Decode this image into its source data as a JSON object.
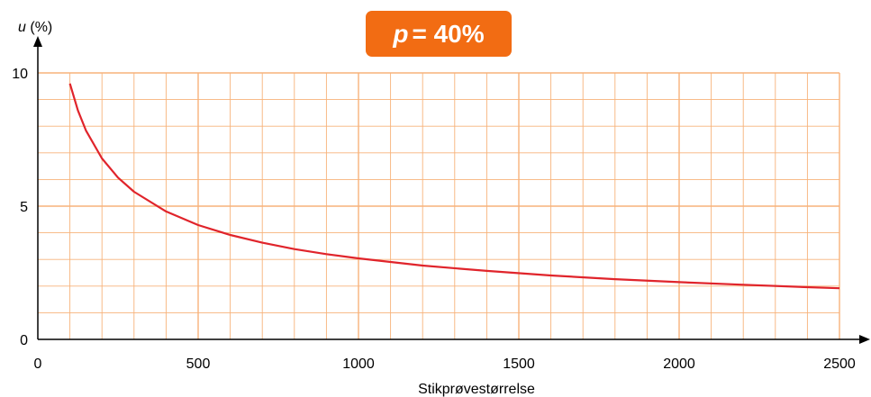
{
  "badge": {
    "variable": "p",
    "text": "= 40%"
  },
  "colors": {
    "grid": "#f7b27a",
    "curve": "#e0242b",
    "badge": "#f26c13",
    "axis": "#000000"
  },
  "chart_data": {
    "type": "line",
    "xlabel": "Stikprøvestørrelse",
    "ylabel_var": "u",
    "ylabel_unit": "(%)",
    "xlim": [
      0,
      2500
    ],
    "ylim": [
      0,
      10
    ],
    "xticks": [
      0,
      500,
      1000,
      1500,
      2000,
      2500
    ],
    "yticks": [
      0,
      5,
      10
    ],
    "grid": true,
    "x_minor_step": 100,
    "y_minor_step": 1,
    "series": [
      {
        "x": [
          100,
          125,
          150,
          200,
          250,
          300,
          400,
          500,
          600,
          700,
          800,
          900,
          1000,
          1200,
          1400,
          1600,
          1800,
          2000,
          2200,
          2400,
          2500
        ],
        "y": [
          9.6,
          8.59,
          7.84,
          6.79,
          6.07,
          5.54,
          4.8,
          4.29,
          3.92,
          3.63,
          3.39,
          3.2,
          3.04,
          2.77,
          2.57,
          2.4,
          2.26,
          2.15,
          2.05,
          1.96,
          1.92
        ]
      }
    ]
  }
}
